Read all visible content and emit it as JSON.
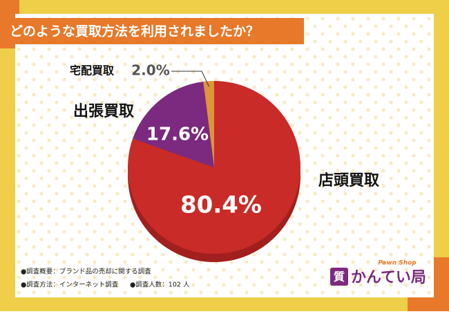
{
  "chart_data": {
    "type": "pie",
    "title": "どのような買取方法を利用されましたか？",
    "categories": [
      "店頭買取",
      "出張買取",
      "宅配買取"
    ],
    "values": [
      80.4,
      17.6,
      2.0
    ],
    "value_labels": [
      "80.4%",
      "17.6%",
      "2.0%"
    ],
    "colors": [
      "#c92b28",
      "#7b2a7f",
      "#de953a"
    ],
    "notes": [
      "●調査概要：ブランド品の売却に関する調査",
      "●調査方法：インターネット調査",
      "●調査人数：102 人"
    ],
    "logo": {
      "tagline": "Pawn Shop",
      "name": "かんてい局",
      "icon": "質"
    }
  }
}
